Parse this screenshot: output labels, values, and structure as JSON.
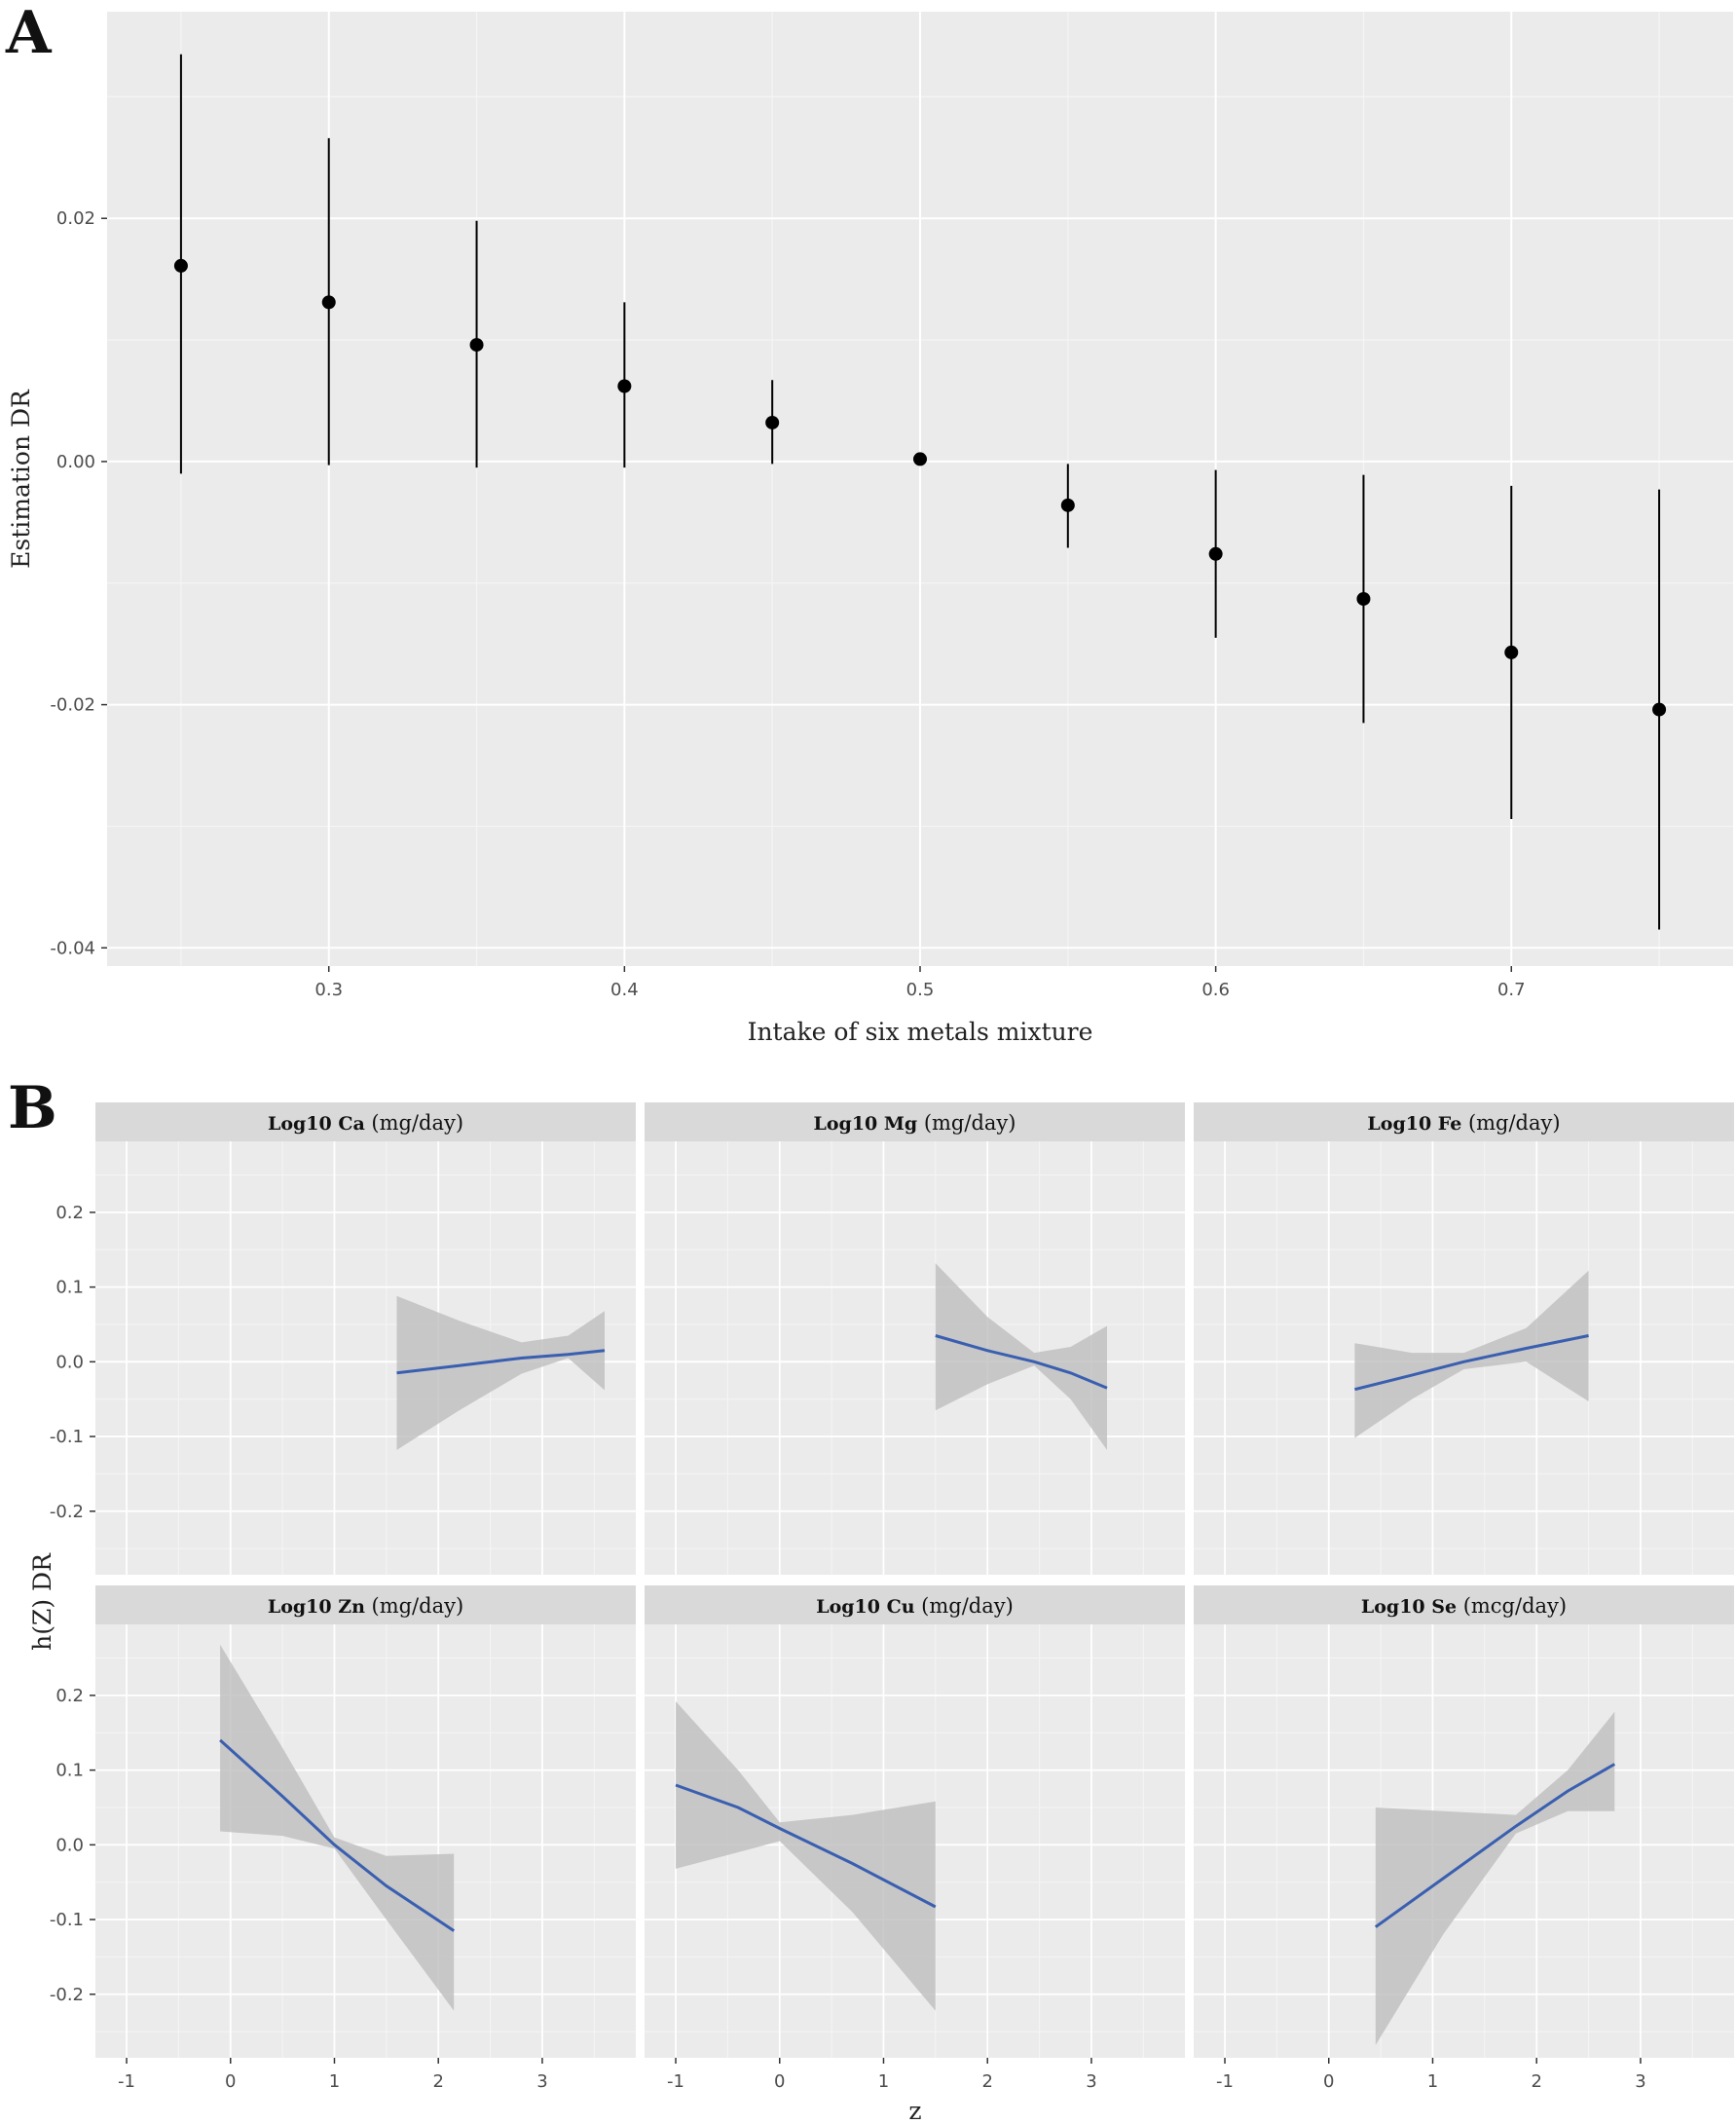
{
  "panel_a_letter": "A",
  "panel_b_letter": "B",
  "colors": {
    "panel_bg": "#ebebeb",
    "grid_major": "#ffffff",
    "grid_minor": "#f5f5f5",
    "strip_bg": "#d9d9d9",
    "point": "#000000",
    "line": "#3a5fb0",
    "band": "#bdbdbd"
  },
  "chart_data": [
    {
      "type": "scatter",
      "subtype": "pointrange",
      "xlabel": "Intake of six metals mixture",
      "ylabel": "Estimation DR",
      "xlim": [
        0.225,
        0.775
      ],
      "ylim": [
        -0.0415,
        0.037
      ],
      "xticks": [
        0.3,
        0.4,
        0.5,
        0.6,
        0.7
      ],
      "xtick_labels": [
        "0.3",
        "0.4",
        "0.5",
        "0.6",
        "0.7"
      ],
      "yticks": [
        0.02,
        0.0,
        -0.02,
        -0.04
      ],
      "ytick_labels": [
        "0.02",
        "0.00",
        "-0.02",
        "-0.04"
      ],
      "points": [
        {
          "x": 0.25,
          "y": 0.0161,
          "lower": -0.001,
          "upper": 0.0335
        },
        {
          "x": 0.3,
          "y": 0.0131,
          "lower": -0.0003,
          "upper": 0.0266
        },
        {
          "x": 0.35,
          "y": 0.0096,
          "lower": -0.0005,
          "upper": 0.0198
        },
        {
          "x": 0.4,
          "y": 0.0062,
          "lower": -0.0005,
          "upper": 0.0131
        },
        {
          "x": 0.45,
          "y": 0.0032,
          "lower": -0.0002,
          "upper": 0.0067
        },
        {
          "x": 0.5,
          "y": 0.0002,
          "lower": 0.0002,
          "upper": 0.0002
        },
        {
          "x": 0.55,
          "y": -0.0036,
          "lower": -0.0071,
          "upper": -0.0002
        },
        {
          "x": 0.6,
          "y": -0.0076,
          "lower": -0.0145,
          "upper": -0.0007
        },
        {
          "x": 0.65,
          "y": -0.0113,
          "lower": -0.0215,
          "upper": -0.0011
        },
        {
          "x": 0.7,
          "y": -0.0157,
          "lower": -0.0294,
          "upper": -0.002
        },
        {
          "x": 0.75,
          "y": -0.0204,
          "lower": -0.0385,
          "upper": -0.0023
        }
      ]
    },
    {
      "type": "line",
      "subtype": "faceted line with confidence band",
      "xlabel": "z",
      "ylabel": "h(Z) DR",
      "xlim": [
        -1.3,
        3.9
      ],
      "ylim": [
        -0.285,
        0.295
      ],
      "xticks": [
        -1,
        0,
        1,
        2,
        3
      ],
      "xtick_labels": [
        "-1",
        "0",
        "1",
        "2",
        "3"
      ],
      "yticks": [
        0.2,
        0.1,
        0.0,
        -0.1,
        -0.2
      ],
      "ytick_labels": [
        "0.2",
        "0.1",
        "0.0",
        "-0.1",
        "-0.2"
      ],
      "facets": [
        {
          "element": "Log10 Ca",
          "unit": "(mg/day)",
          "x": [
            1.6,
            2.2,
            2.8,
            3.25,
            3.6
          ],
          "y": [
            -0.015,
            -0.005,
            0.005,
            0.01,
            0.015
          ],
          "lower": [
            -0.118,
            -0.065,
            -0.016,
            0.005,
            -0.038
          ],
          "upper": [
            0.088,
            0.055,
            0.026,
            0.035,
            0.068
          ]
        },
        {
          "element": "Log10 Mg",
          "unit": "(mg/day)",
          "x": [
            1.5,
            2.0,
            2.45,
            2.8,
            3.15
          ],
          "y": [
            0.035,
            0.015,
            0.0,
            -0.015,
            -0.035
          ],
          "lower": [
            -0.065,
            -0.03,
            -0.005,
            -0.05,
            -0.118
          ],
          "upper": [
            0.132,
            0.06,
            0.012,
            0.02,
            0.048
          ]
        },
        {
          "element": "Log10 Fe",
          "unit": "(mg/day)",
          "x": [
            0.25,
            0.8,
            1.3,
            1.9,
            2.5
          ],
          "y": [
            -0.037,
            -0.018,
            0.0,
            0.018,
            0.035
          ],
          "lower": [
            -0.102,
            -0.05,
            -0.01,
            0.0,
            -0.053
          ],
          "upper": [
            0.025,
            0.012,
            0.012,
            0.045,
            0.122
          ]
        },
        {
          "element": "Log10 Zn",
          "unit": "(mg/day)",
          "x": [
            -0.1,
            0.5,
            1.0,
            1.5,
            2.15
          ],
          "y": [
            0.14,
            0.065,
            0.0,
            -0.055,
            -0.115
          ],
          "lower": [
            0.018,
            0.012,
            -0.005,
            -0.1,
            -0.222
          ],
          "upper": [
            0.268,
            0.13,
            0.01,
            -0.015,
            -0.012
          ]
        },
        {
          "element": "Log10 Cu",
          "unit": "(mg/day)",
          "x": [
            -1.0,
            -0.4,
            0.0,
            0.7,
            1.5
          ],
          "y": [
            0.08,
            0.05,
            0.022,
            -0.025,
            -0.083
          ],
          "lower": [
            -0.032,
            -0.01,
            0.005,
            -0.09,
            -0.222
          ],
          "upper": [
            0.192,
            0.1,
            0.03,
            0.04,
            0.058
          ]
        },
        {
          "element": "Log10 Se",
          "unit": "(mcg/day)",
          "x": [
            0.45,
            1.1,
            1.8,
            2.3,
            2.75
          ],
          "y": [
            -0.11,
            -0.045,
            0.025,
            0.072,
            0.108
          ],
          "lower": [
            -0.268,
            -0.12,
            0.015,
            0.045,
            0.045
          ],
          "upper": [
            0.05,
            0.045,
            0.04,
            0.1,
            0.178
          ]
        }
      ]
    }
  ]
}
